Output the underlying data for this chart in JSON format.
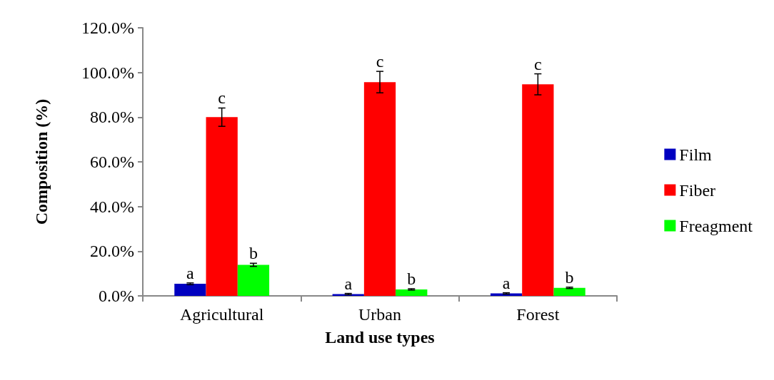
{
  "chart_data": {
    "type": "bar",
    "xlabel": "Land use types",
    "ylabel": "Composition (%)",
    "categories": [
      "Agricultural",
      "Urban",
      "Forest"
    ],
    "series": [
      {
        "name": "Film",
        "color": "#0000c0",
        "values": [
          5.4,
          0.8,
          1.1
        ],
        "errors": [
          0.4,
          0.3,
          0.3
        ],
        "value_labels": [
          "a",
          "a",
          "a"
        ]
      },
      {
        "name": "Fiber",
        "color": "#ff0000",
        "values": [
          80,
          95.7,
          94.7
        ],
        "errors": [
          4.1,
          4.8,
          4.7
        ],
        "value_labels": [
          "c",
          "c",
          "c"
        ]
      },
      {
        "name": "Freagment",
        "color": "#00ff00",
        "values": [
          13.9,
          2.9,
          3.6
        ],
        "errors": [
          0.7,
          0.3,
          0.3
        ],
        "value_labels": [
          "b",
          "b",
          "b"
        ]
      }
    ],
    "ylim": [
      0,
      120
    ],
    "yticks": [
      {
        "value": 0,
        "label": "0.0%"
      },
      {
        "value": 20,
        "label": "20.0%"
      },
      {
        "value": 40,
        "label": "40.0%"
      },
      {
        "value": 60,
        "label": "60.0%"
      },
      {
        "value": 80,
        "label": "80.0%"
      },
      {
        "value": 100,
        "label": "100.0%"
      },
      {
        "value": 120,
        "label": "120.0%"
      }
    ],
    "grid": false,
    "legend": "right"
  }
}
